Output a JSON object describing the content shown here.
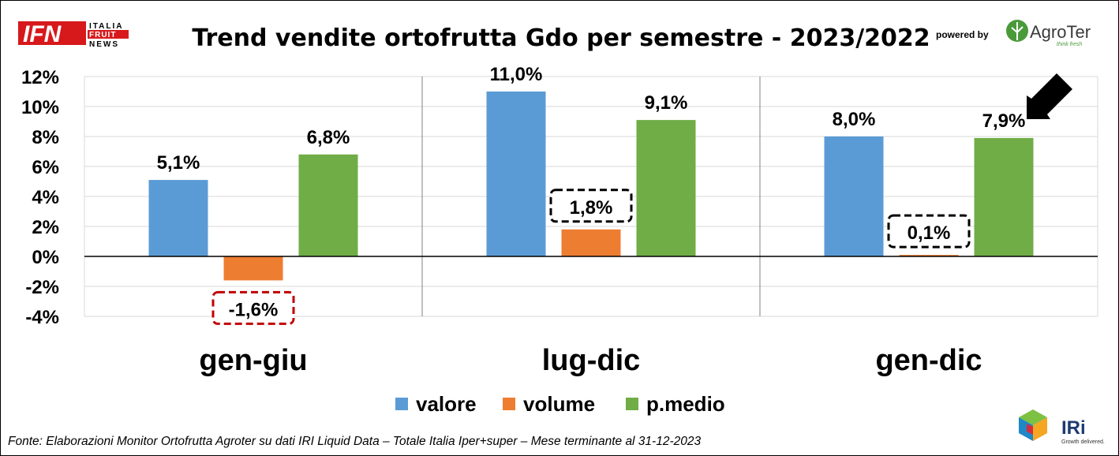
{
  "header": {
    "logo_ifn": {
      "main": "IFN",
      "line1": "ITALIA",
      "line2": "FRUIT",
      "line3": "NEWS"
    },
    "powered_by": "powered by",
    "agroter": {
      "name": "AgroTer",
      "tagline": "think fresh",
      "colors": {
        "green": "#4a9a3a"
      }
    }
  },
  "chart_data": {
    "type": "bar",
    "title": "Trend vendite ortofrutta Gdo per semestre - 2023/2022",
    "categories": [
      "gen-giu",
      "lug-dic",
      "gen-dic"
    ],
    "series": [
      {
        "name": "valore",
        "values": [
          5.1,
          11.0,
          8.0
        ],
        "labels": [
          "5,1%",
          "11,0%",
          "8,0%"
        ],
        "color": "#5b9bd5"
      },
      {
        "name": "volume",
        "values": [
          -1.6,
          1.8,
          0.1
        ],
        "labels": [
          "-1,6%",
          "1,8%",
          "0,1%"
        ],
        "color": "#ed7d31"
      },
      {
        "name": "p.medio",
        "values": [
          6.8,
          9.1,
          7.9
        ],
        "labels": [
          "6,8%",
          "9,1%",
          "7,9%"
        ],
        "color": "#70ad47"
      }
    ],
    "ylim": [
      -4,
      12
    ],
    "yticks": [
      12,
      10,
      8,
      6,
      4,
      2,
      0,
      -2,
      -4
    ],
    "ytick_labels": [
      "12%",
      "10%",
      "8%",
      "6%",
      "4%",
      "2%",
      "0%",
      "-2%",
      "-4%"
    ],
    "grid": true,
    "legend_position": "bottom",
    "annotations": {
      "highlighted_labels": [
        {
          "series": "volume",
          "category": "gen-giu",
          "style": "dashed-box",
          "color": "#c00000"
        },
        {
          "series": "volume",
          "category": "lug-dic",
          "style": "dashed-box",
          "color": "#000000"
        },
        {
          "series": "volume",
          "category": "gen-dic",
          "style": "dashed-box",
          "color": "#000000"
        }
      ],
      "arrow": {
        "series": "p.medio",
        "category": "gen-dic",
        "color": "#000000"
      }
    }
  },
  "footer": {
    "source": "Fonte: Elaborazioni Monitor Ortofrutta Agroter su dati IRI Liquid Data – Totale Italia Iper+super – Mese terminante al 31-12-2023",
    "iri_logo": {
      "name": "IRi",
      "tagline": "Growth delivered."
    }
  }
}
